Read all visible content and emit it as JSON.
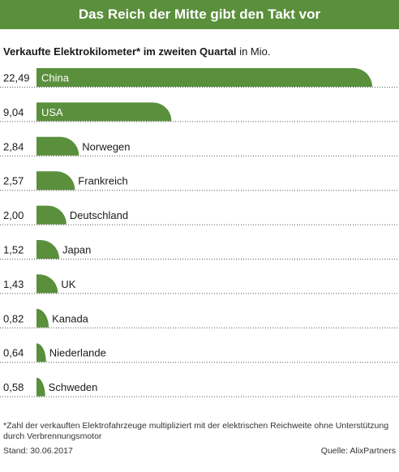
{
  "header": {
    "banner_title": "Das Reich der Mitte gibt den Takt vor"
  },
  "subtitle": {
    "bold": "Verkaufte Elektrokilometer* im zweiten Quartal",
    "unit": "in Mio."
  },
  "colors": {
    "bar": "#5a8f3c",
    "banner": "#5a8f3c",
    "label_inside": "#ffffff"
  },
  "chart_data": {
    "type": "bar",
    "orientation": "horizontal",
    "categories": [
      "China",
      "USA",
      "Norwegen",
      "Frankreich",
      "Deutschland",
      "Japan",
      "UK",
      "Kanada",
      "Niederlande",
      "Schweden"
    ],
    "values": [
      22.49,
      9.04,
      2.84,
      2.57,
      2.0,
      1.52,
      1.43,
      0.82,
      0.64,
      0.58
    ],
    "value_labels": [
      "22,49",
      "9,04",
      "2,84",
      "2,57",
      "2,00",
      "1,52",
      "1,43",
      "0,82",
      "0,64",
      "0,58"
    ],
    "labels_inside_bar": [
      "China",
      "USA"
    ],
    "title": "Verkaufte Elektrokilometer* im zweiten Quartal",
    "unit": "in Mio.",
    "xlim": [
      0,
      22.49
    ],
    "grid": false
  },
  "footer": {
    "note": "*Zahl der verkauften Elektrofahrzeuge multipliziert mit der elektrischen Reichweite ohne Unterstützung durch Verbrennungsmotor",
    "date": "Stand: 30.06.2017",
    "source": "Quelle: AlixPartners"
  }
}
